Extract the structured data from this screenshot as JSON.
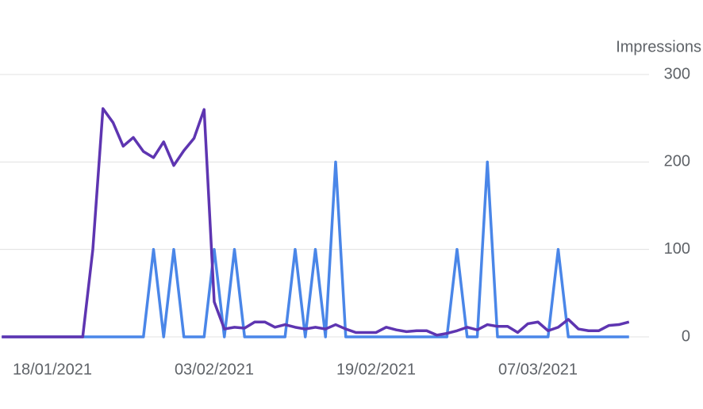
{
  "chart_data": {
    "type": "line",
    "y_label": "Impressions",
    "x": [
      "13/01/2021",
      "14/01/2021",
      "15/01/2021",
      "16/01/2021",
      "17/01/2021",
      "18/01/2021",
      "19/01/2021",
      "20/01/2021",
      "21/01/2021",
      "22/01/2021",
      "23/01/2021",
      "24/01/2021",
      "25/01/2021",
      "26/01/2021",
      "27/01/2021",
      "28/01/2021",
      "29/01/2021",
      "30/01/2021",
      "31/01/2021",
      "01/02/2021",
      "02/02/2021",
      "03/02/2021",
      "04/02/2021",
      "05/02/2021",
      "06/02/2021",
      "07/02/2021",
      "08/02/2021",
      "09/02/2021",
      "10/02/2021",
      "11/02/2021",
      "12/02/2021",
      "13/02/2021",
      "14/02/2021",
      "15/02/2021",
      "16/02/2021",
      "17/02/2021",
      "18/02/2021",
      "19/02/2021",
      "20/02/2021",
      "21/02/2021",
      "22/02/2021",
      "23/02/2021",
      "24/02/2021",
      "25/02/2021",
      "26/02/2021",
      "27/02/2021",
      "28/02/2021",
      "01/03/2021",
      "02/03/2021",
      "03/03/2021",
      "04/03/2021",
      "05/03/2021",
      "06/03/2021",
      "07/03/2021",
      "08/03/2021",
      "09/03/2021",
      "10/03/2021",
      "11/03/2021",
      "12/03/2021",
      "13/03/2021",
      "14/03/2021",
      "15/03/2021",
      "16/03/2021"
    ],
    "xticks": [
      "18/01/2021",
      "03/02/2021",
      "19/02/2021",
      "07/03/2021"
    ],
    "series": [
      {
        "color": "#5e35b1",
        "values": [
          0,
          0,
          0,
          0,
          0,
          0,
          0,
          0,
          0,
          100,
          261,
          245,
          218,
          228,
          212,
          205,
          223,
          196,
          213,
          227,
          260,
          40,
          9,
          11,
          10,
          17,
          17,
          11,
          14,
          11,
          9,
          11,
          9,
          14,
          9,
          5,
          5,
          5,
          11,
          8,
          6,
          7,
          7,
          2,
          4,
          7,
          11,
          8,
          14,
          12,
          12,
          5,
          15,
          17,
          7,
          11,
          20,
          9,
          7,
          7,
          13,
          14,
          17
        ]
      },
      {
        "color": "#4a86e8",
        "values": [
          0,
          0,
          0,
          0,
          0,
          0,
          0,
          0,
          0,
          0,
          0,
          0,
          0,
          0,
          0,
          100,
          0,
          100,
          0,
          0,
          0,
          100,
          0,
          100,
          0,
          0,
          0,
          0,
          0,
          100,
          0,
          100,
          0,
          200,
          0,
          0,
          0,
          0,
          0,
          0,
          0,
          0,
          0,
          0,
          0,
          100,
          0,
          0,
          200,
          0,
          0,
          0,
          0,
          0,
          0,
          100,
          0,
          0,
          0,
          0,
          0,
          0,
          0
        ]
      }
    ],
    "ylim": [
      0,
      300
    ],
    "yticks": [
      0,
      100,
      200,
      300
    ],
    "grid": true
  }
}
